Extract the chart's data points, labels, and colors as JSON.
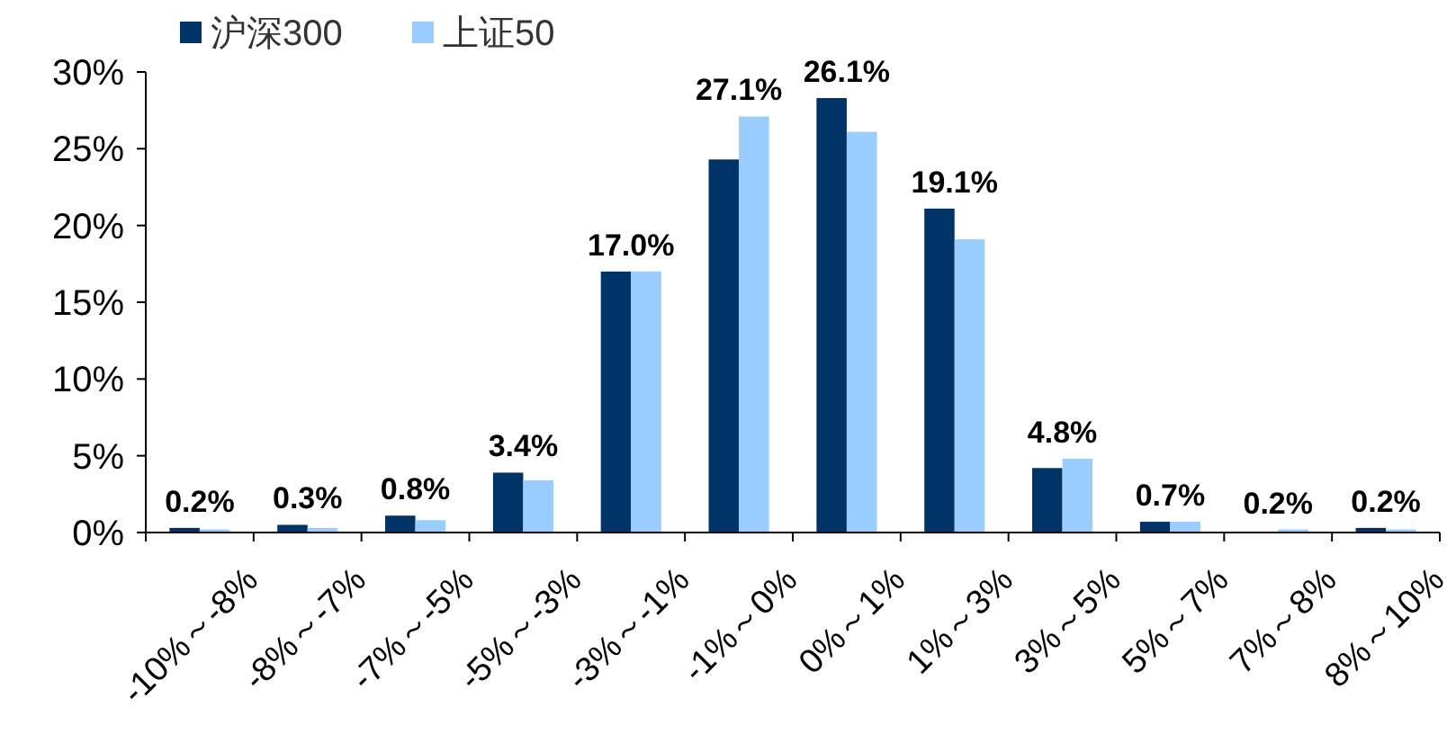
{
  "chart_data": {
    "type": "bar",
    "categories": [
      "-10%～-8%",
      "-8%～-7%",
      "-7%～-5%",
      "-5%～-3%",
      "-3%～-1%",
      "-1%～0%",
      "0%～1%",
      "1%～3%",
      "3%～5%",
      "5%～7%",
      "7%～8%",
      "8%～10%"
    ],
    "series": [
      {
        "name": "沪深300",
        "color": "#003366",
        "values": [
          0.3,
          0.5,
          1.1,
          3.9,
          17.0,
          24.3,
          28.3,
          21.1,
          4.2,
          0.7,
          0.0,
          0.3
        ]
      },
      {
        "name": "上证50",
        "color": "#99ccff",
        "values": [
          0.2,
          0.3,
          0.8,
          3.4,
          17.0,
          27.1,
          26.1,
          19.1,
          4.8,
          0.7,
          0.2,
          0.2
        ],
        "value_labels": [
          "0.2%",
          "0.3%",
          "0.8%",
          "3.4%",
          "17.0%",
          "27.1%",
          "26.1%",
          "19.1%",
          "4.8%",
          "0.7%",
          "0.2%",
          "0.2%"
        ]
      }
    ],
    "ylim": [
      0,
      30
    ],
    "yticks": [
      {
        "value": 0,
        "label": "0%"
      },
      {
        "value": 5,
        "label": "5%"
      },
      {
        "value": 10,
        "label": "10%"
      },
      {
        "value": 15,
        "label": "15%"
      },
      {
        "value": 20,
        "label": "20%"
      },
      {
        "value": 25,
        "label": "25%"
      },
      {
        "value": 30,
        "label": "30%"
      }
    ],
    "legend": "top left",
    "grid": false
  }
}
